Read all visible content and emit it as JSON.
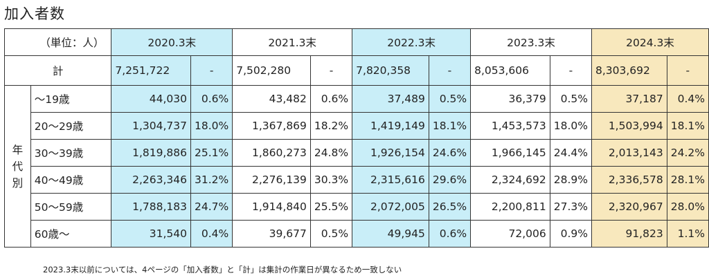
{
  "title": "加入者数",
  "unit_label": "（単位：人）",
  "years": [
    "2020.3末",
    "2021.3末",
    "2022.3末",
    "2023.3末",
    "2024.3末"
  ],
  "total": {
    "label": "計",
    "values": [
      {
        "count": "7,251,722",
        "pct": "-"
      },
      {
        "count": "7,502,280",
        "pct": "-"
      },
      {
        "count": "7,820,358",
        "pct": "-"
      },
      {
        "count": "8,053,606",
        "pct": "-"
      },
      {
        "count": "8,303,692",
        "pct": "-"
      }
    ]
  },
  "side_label": [
    "年",
    "代",
    "別"
  ],
  "rows": [
    {
      "label": "～19歳",
      "values": [
        {
          "count": "44,030",
          "pct": "0.6%"
        },
        {
          "count": "43,482",
          "pct": "0.6%"
        },
        {
          "count": "37,489",
          "pct": "0.5%"
        },
        {
          "count": "36,379",
          "pct": "0.5%"
        },
        {
          "count": "37,187",
          "pct": "0.4%"
        }
      ]
    },
    {
      "label": "20～29歳",
      "values": [
        {
          "count": "1,304,737",
          "pct": "18.0%"
        },
        {
          "count": "1,367,869",
          "pct": "18.2%"
        },
        {
          "count": "1,419,149",
          "pct": "18.1%"
        },
        {
          "count": "1,453,573",
          "pct": "18.0%"
        },
        {
          "count": "1,503,994",
          "pct": "18.1%"
        }
      ]
    },
    {
      "label": "30～39歳",
      "values": [
        {
          "count": "1,819,886",
          "pct": "25.1%"
        },
        {
          "count": "1,860,273",
          "pct": "24.8%"
        },
        {
          "count": "1,926,154",
          "pct": "24.6%"
        },
        {
          "count": "1,966,145",
          "pct": "24.4%"
        },
        {
          "count": "2,013,143",
          "pct": "24.2%"
        }
      ]
    },
    {
      "label": "40～49歳",
      "values": [
        {
          "count": "2,263,346",
          "pct": "31.2%"
        },
        {
          "count": "2,276,139",
          "pct": "30.3%"
        },
        {
          "count": "2,315,616",
          "pct": "29.6%"
        },
        {
          "count": "2,324,692",
          "pct": "28.9%"
        },
        {
          "count": "2,336,578",
          "pct": "28.1%"
        }
      ]
    },
    {
      "label": "50～59歳",
      "values": [
        {
          "count": "1,788,183",
          "pct": "24.7%"
        },
        {
          "count": "1,914,840",
          "pct": "25.5%"
        },
        {
          "count": "2,072,005",
          "pct": "26.5%"
        },
        {
          "count": "2,200,811",
          "pct": "27.3%"
        },
        {
          "count": "2,320,967",
          "pct": "28.0%"
        }
      ]
    },
    {
      "label": "60歳～",
      "values": [
        {
          "count": "31,540",
          "pct": "0.4%"
        },
        {
          "count": "39,677",
          "pct": "0.5%"
        },
        {
          "count": "49,945",
          "pct": "0.6%"
        },
        {
          "count": "72,006",
          "pct": "0.9%"
        },
        {
          "count": "91,823",
          "pct": "1.1%"
        }
      ]
    }
  ],
  "colors": {
    "highlight_blue": "#c9eef8",
    "highlight_gold": "#f8e8bd"
  },
  "column_fills": [
    "blue",
    "white",
    "blue",
    "white",
    "gold"
  ],
  "note": "2023.3末以前については、4ページの「加入者数」と「計」は集計の作業日が異なるため一致しない"
}
